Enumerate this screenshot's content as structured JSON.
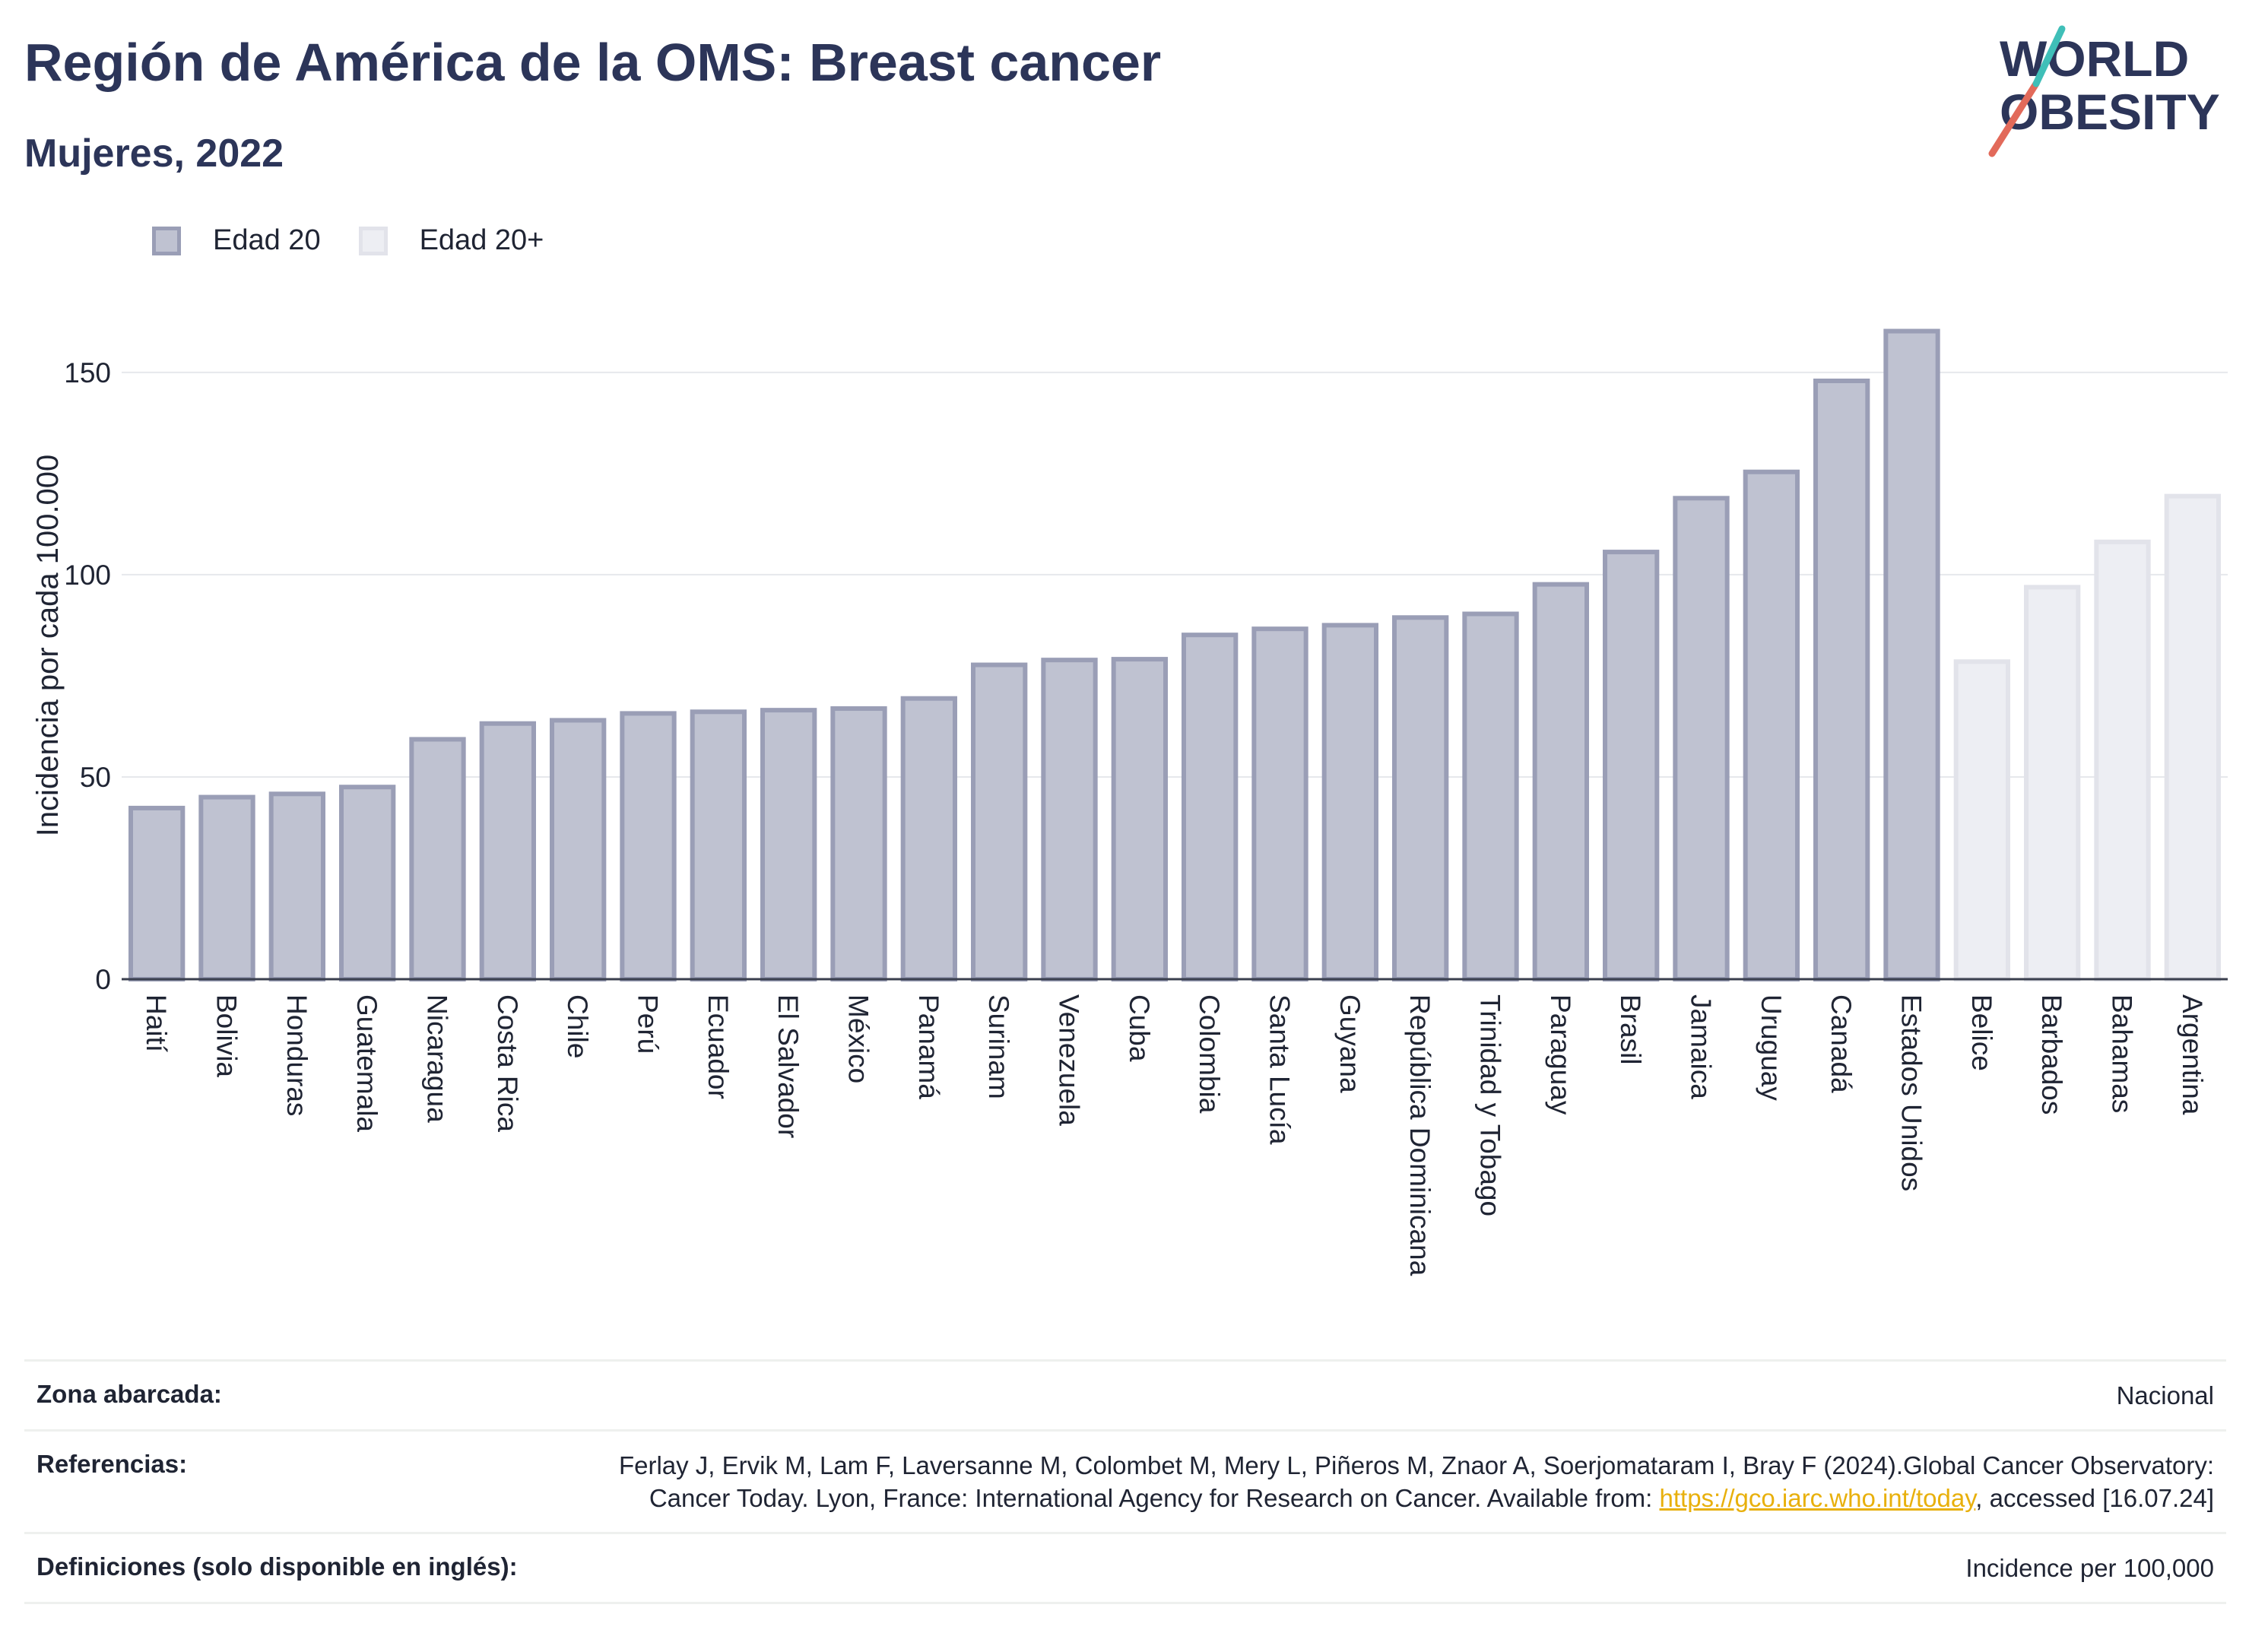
{
  "header": {
    "title": "Región de América de la OMS: Breast cancer",
    "subtitle": "Mujeres, 2022"
  },
  "logo": {
    "line1": "WORLD",
    "line2": "OBESITY",
    "colors": [
      "#2c3559",
      "#e26a5a",
      "#3fbfb8"
    ]
  },
  "legend": [
    {
      "label": "Edad 20",
      "color": "#bfc2d1"
    },
    {
      "label": "Edad 20+",
      "color": "#edeef3"
    }
  ],
  "chart_data": {
    "type": "bar",
    "ylabel": "Incidencia por cada 100.000",
    "xlabel": "",
    "ylim": [
      0,
      165
    ],
    "yticks": [
      0,
      50,
      100,
      150
    ],
    "grid": true,
    "legend_position": "top-left",
    "categories": [
      "Haití",
      "Bolivia",
      "Honduras",
      "Guatemala",
      "Nicaragua",
      "Costa Rica",
      "Chile",
      "Perú",
      "Ecuador",
      "El Salvador",
      "México",
      "Panamá",
      "Surinam",
      "Venezuela",
      "Cuba",
      "Colombia",
      "Santa Lucía",
      "Guyana",
      "República Dominicana",
      "Trinidad y Tobago",
      "Paraguay",
      "Brasil",
      "Jamaica",
      "Uruguay",
      "Canadá",
      "Estados Unidos",
      "Belice",
      "Barbados",
      "Bahamas",
      "Argentina"
    ],
    "values": [
      42.3,
      45.0,
      45.8,
      47.5,
      59.3,
      63.2,
      64.0,
      65.7,
      66.1,
      66.5,
      66.9,
      69.4,
      77.7,
      78.9,
      79.1,
      85.1,
      86.6,
      87.5,
      89.4,
      90.3,
      97.6,
      105.6,
      118.9,
      125.4,
      147.9,
      160.2,
      78.5,
      96.9,
      108.1,
      119.4
    ],
    "series": [
      {
        "name": "Edad 20",
        "color": "#bfc2d1",
        "stroke": "#9a9eb6",
        "range": [
          0,
          25
        ]
      },
      {
        "name": "Edad 20+",
        "color": "#edeef3",
        "stroke": "#e2e3ea",
        "range": [
          26,
          29
        ]
      }
    ]
  },
  "footer": {
    "zone_label": "Zona abarcada:",
    "zone_value": "Nacional",
    "refs_label": "Referencias:",
    "refs_text_1": "Ferlay J, Ervik M, Lam F, Laversanne M, Colombet M, Mery L, Piñeros M, Znaor A, Soerjomataram I, Bray F (2024).Global Cancer Observatory: Cancer Today. Lyon, France: International Agency for Research on Cancer. Available from: ",
    "refs_link": "https://gco.iarc.who.int/today",
    "refs_text_2": ", accessed [16.07.24]",
    "defs_label": "Definiciones (solo disponible en inglés):",
    "defs_value": "Incidence per 100,000"
  }
}
